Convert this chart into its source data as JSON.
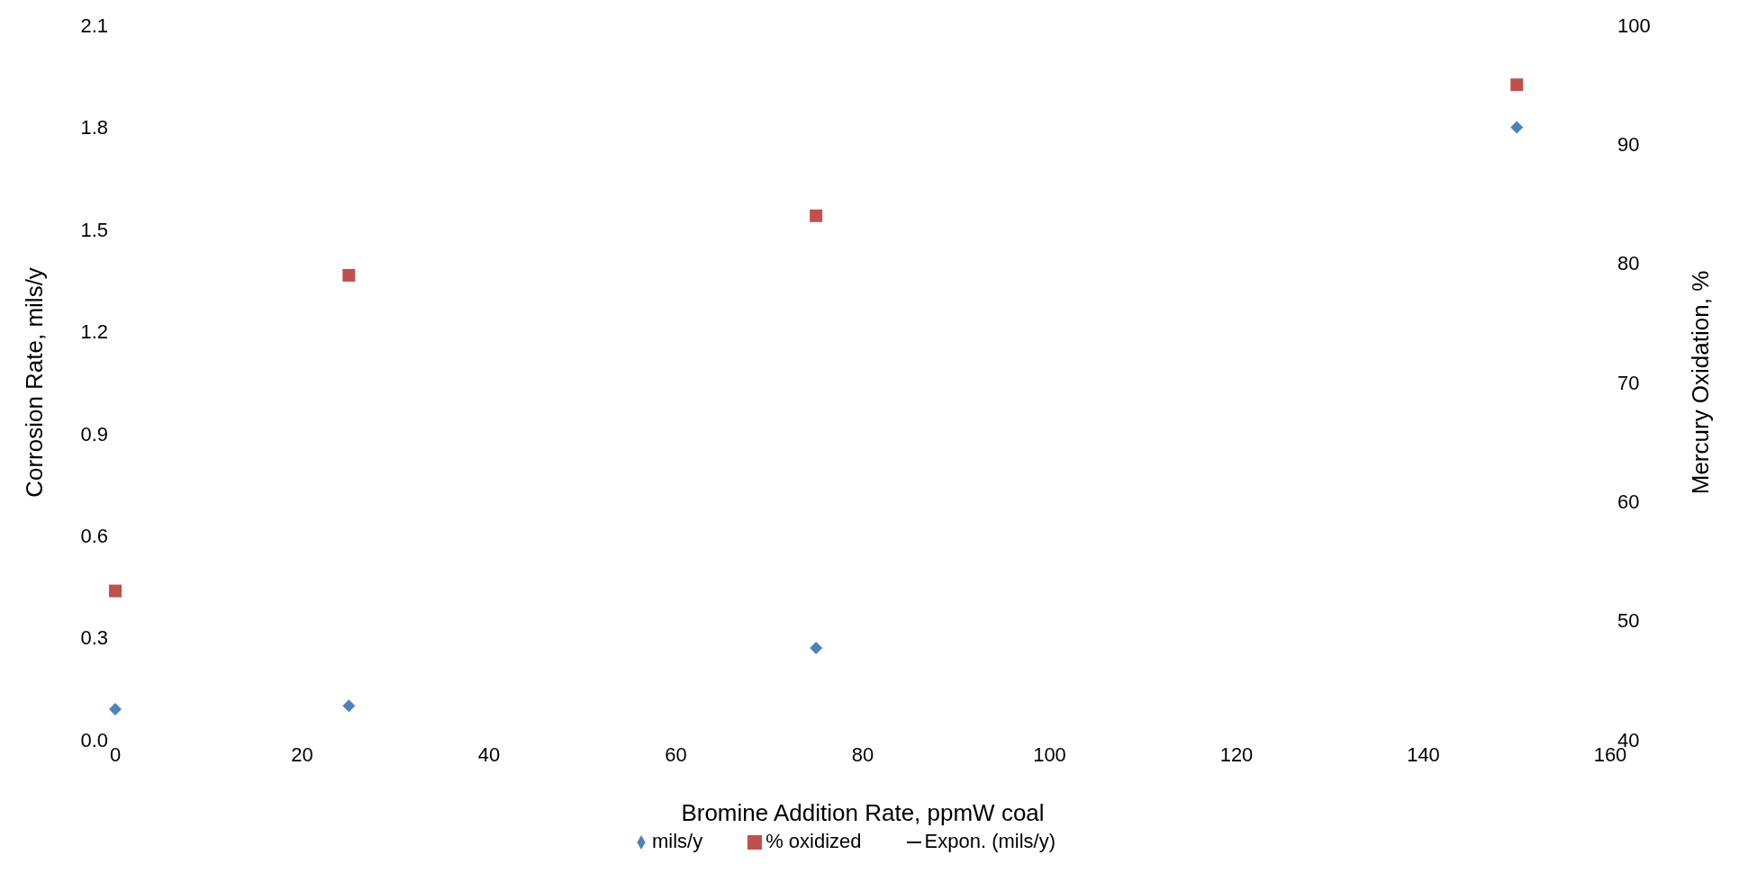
{
  "chart_data": {
    "type": "scatter",
    "xlabel": "Bromine Addition Rate, ppmW coal",
    "ylabel": "Corrosion Rate, mils/y",
    "y2label": "Mercury Oxidation, %",
    "x": [
      0,
      25,
      75,
      150
    ],
    "series": [
      {
        "name": "mils/y",
        "color": "#4f81bd",
        "marker": "diamond",
        "values": [
          0.09,
          0.1,
          0.27,
          1.8
        ]
      },
      {
        "name": "% oxidized",
        "color": "#c0504d",
        "marker": "square",
        "axis": "y2",
        "values": [
          52.5,
          79,
          84,
          95
        ]
      },
      {
        "name": "Expon. (mils/y)",
        "type": "line",
        "color": "#000000",
        "values": [
          null,
          null,
          null,
          null
        ]
      }
    ],
    "xlim": [
      0,
      160
    ],
    "xticks": [
      0,
      20,
      40,
      60,
      80,
      100,
      120,
      140,
      160
    ],
    "ylim": [
      0,
      2.1
    ],
    "yticks": [
      {
        "value": 0,
        "label": "0.0"
      },
      0.3,
      0.6,
      0.9,
      1.2,
      1.5,
      1.8,
      2.1
    ],
    "y2lim": [
      40,
      100
    ],
    "y2ticks": [
      40,
      50,
      60,
      70,
      80,
      90,
      100
    ],
    "grid": false,
    "legend": "bottom"
  }
}
